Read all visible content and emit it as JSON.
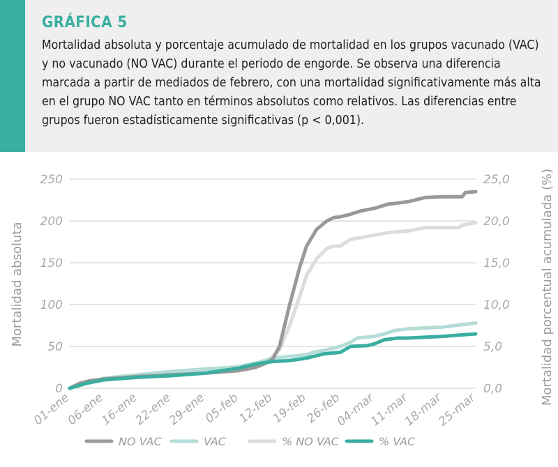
{
  "caption": {
    "title": "GRÁFICA 5",
    "text": "Mortalidad absoluta y porcentaje acumulado de mortalidad en los grupos vacunado (VAC) y no vacunado (NO VAC) durante el periodo de engorde. Se observa una diferencia marcada a partir de mediados de febrero, con una mortalidad significativamente más alta en el grupo NO VAC tanto en términos absolutos como relativos. Las diferencias entre grupos fueron estadísticamente significativas (p < 0,001)."
  },
  "colors": {
    "accent": "#3aaea0",
    "no_vac": "#999999",
    "vac": "#b3ddd6",
    "pct_no_vac": "#dcdcdc",
    "pct_vac": "#3aaea0",
    "grid": "#c8c8c8"
  },
  "chart_data": {
    "type": "line",
    "ylabel_left": "Mortalidad absoluta",
    "ylabel_right": "Mortalidad porcentual acumulada (%)",
    "ylim_left": [
      0,
      250
    ],
    "ylim_right": [
      0,
      25
    ],
    "yticks_left": [
      "0",
      "50",
      "100",
      "150",
      "200",
      "250"
    ],
    "yticks_right": [
      "0,0",
      "5,0",
      "10,0",
      "15,0",
      "20,0",
      "25,0"
    ],
    "x_tick_labels": [
      "01-ene",
      "06-ene",
      "16-ene",
      "22-ene",
      "29-ene",
      "05-feb",
      "12-feb",
      "19-feb",
      "26-feb",
      "04-mar",
      "11-mar",
      "18-mar",
      "25-mar"
    ],
    "legend_position": "bottom",
    "grid": true,
    "series": [
      {
        "name": "NO VAC",
        "axis": "left",
        "points": [
          [
            0,
            0
          ],
          [
            0.3,
            6
          ],
          [
            0.6,
            9
          ],
          [
            1,
            11
          ],
          [
            2,
            14
          ],
          [
            3,
            16
          ],
          [
            4,
            18
          ],
          [
            5,
            21
          ],
          [
            5.5,
            25
          ],
          [
            5.8,
            30
          ],
          [
            6,
            35
          ],
          [
            6.2,
            50
          ],
          [
            6.5,
            100
          ],
          [
            6.8,
            145
          ],
          [
            7,
            170
          ],
          [
            7.3,
            190
          ],
          [
            7.6,
            200
          ],
          [
            7.8,
            204
          ],
          [
            8,
            205
          ],
          [
            8.3,
            208
          ],
          [
            8.6,
            212
          ],
          [
            9,
            215
          ],
          [
            9.4,
            220
          ],
          [
            9.8,
            222
          ],
          [
            10,
            223
          ],
          [
            10.5,
            228
          ],
          [
            11,
            229
          ],
          [
            11.5,
            229
          ],
          [
            11.6,
            229
          ],
          [
            11.7,
            234
          ],
          [
            12,
            235
          ]
        ]
      },
      {
        "name": "VAC",
        "axis": "left",
        "points": [
          [
            0,
            0
          ],
          [
            0.5,
            6
          ],
          [
            1,
            12
          ],
          [
            2,
            16
          ],
          [
            3,
            20
          ],
          [
            4,
            23
          ],
          [
            4.8,
            25
          ],
          [
            5,
            26
          ],
          [
            5.5,
            30
          ],
          [
            6,
            36
          ],
          [
            6.5,
            38
          ],
          [
            7,
            40
          ],
          [
            7.2,
            43
          ],
          [
            7.6,
            46
          ],
          [
            8,
            50
          ],
          [
            8.3,
            55
          ],
          [
            8.5,
            60
          ],
          [
            9,
            62
          ],
          [
            9.3,
            65
          ],
          [
            9.6,
            69
          ],
          [
            10,
            71
          ],
          [
            11,
            73
          ],
          [
            12,
            78
          ]
        ]
      },
      {
        "name": "% NO VAC",
        "axis": "right",
        "points": [
          [
            0,
            0
          ],
          [
            0.5,
            0.6
          ],
          [
            1,
            1
          ],
          [
            2,
            1.4
          ],
          [
            3,
            1.8
          ],
          [
            4,
            2
          ],
          [
            4.5,
            2.1
          ],
          [
            5,
            2.4
          ],
          [
            5.5,
            2.6
          ],
          [
            5.8,
            3.2
          ],
          [
            6,
            3.8
          ],
          [
            6.2,
            4.6
          ],
          [
            6.5,
            7.5
          ],
          [
            6.8,
            11
          ],
          [
            7,
            13.5
          ],
          [
            7.3,
            15.5
          ],
          [
            7.6,
            16.7
          ],
          [
            7.8,
            17
          ],
          [
            8,
            17
          ],
          [
            8.3,
            17.8
          ],
          [
            8.6,
            18
          ],
          [
            9,
            18.3
          ],
          [
            9.4,
            18.6
          ],
          [
            10,
            18.8
          ],
          [
            10.5,
            19.2
          ],
          [
            11,
            19.2
          ],
          [
            11.5,
            19.2
          ],
          [
            11.6,
            19.5
          ],
          [
            12,
            19.8
          ]
        ]
      },
      {
        "name": "% VAC",
        "axis": "right",
        "points": [
          [
            0,
            0
          ],
          [
            0.5,
            0.6
          ],
          [
            1,
            1
          ],
          [
            2,
            1.3
          ],
          [
            3,
            1.5
          ],
          [
            4,
            1.8
          ],
          [
            5,
            2.4
          ],
          [
            5.5,
            2.9
          ],
          [
            6,
            3.2
          ],
          [
            6.5,
            3.3
          ],
          [
            7,
            3.6
          ],
          [
            7.5,
            4.1
          ],
          [
            8,
            4.3
          ],
          [
            8.3,
            5
          ],
          [
            8.8,
            5.1
          ],
          [
            9,
            5.3
          ],
          [
            9.3,
            5.8
          ],
          [
            9.7,
            6
          ],
          [
            10,
            6
          ],
          [
            11,
            6.2
          ],
          [
            12,
            6.5
          ]
        ]
      }
    ]
  }
}
